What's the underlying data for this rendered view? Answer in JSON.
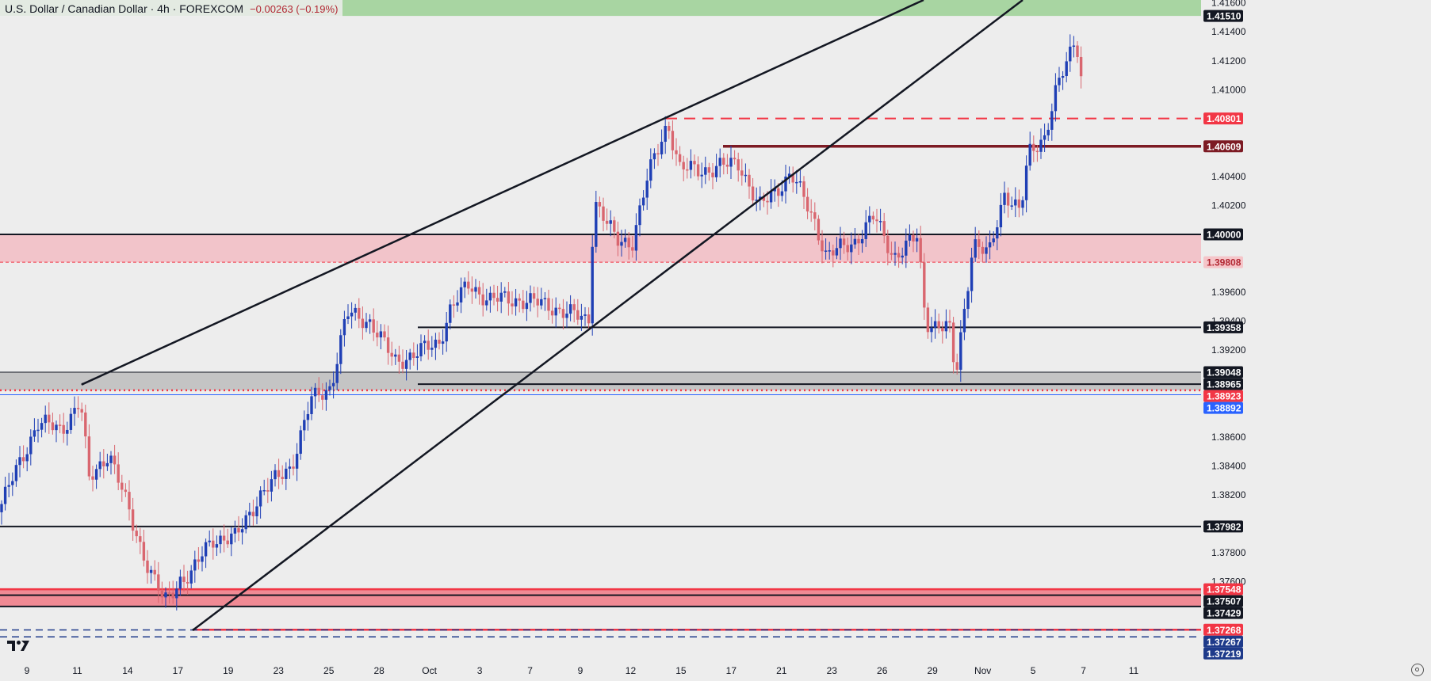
{
  "header": {
    "title": "U.S. Dollar / Canadian Dollar · 4h · FOREXCOM",
    "change": "−0.00263 (−0.19%)"
  },
  "colors": {
    "bull": "#1f3fb5",
    "bear": "#d9666f",
    "resistance_band": "#a8d5a2",
    "pink_zone": "#f2c4ca",
    "gray_zone": "#c4c4c4",
    "red_line": "#f23645",
    "dark_red_line": "#7d1b24"
  },
  "chart_data": {
    "type": "candlestick",
    "symbol": "USD/CAD",
    "timeframe": "4h",
    "price_range": [
      1.371,
      1.4162
    ],
    "price_ticks": [
      "1.41600",
      "1.41400",
      "1.41200",
      "1.41000",
      "1.40400",
      "1.40200",
      "1.39600",
      "1.39400",
      "1.39200",
      "1.38600",
      "1.38400",
      "1.38200",
      "1.37800",
      "1.37600"
    ],
    "x_ticks": [
      "9",
      "11",
      "14",
      "17",
      "19",
      "23",
      "25",
      "28",
      "Oct",
      "3",
      "7",
      "9",
      "12",
      "15",
      "17",
      "21",
      "23",
      "26",
      "29",
      "Nov",
      "5",
      "7",
      "11"
    ],
    "anchors": [
      [
        0,
        1.3808
      ],
      [
        50,
        1.387
      ],
      [
        80,
        1.3865
      ],
      [
        104,
        1.3885
      ],
      [
        115,
        1.383
      ],
      [
        140,
        1.385
      ],
      [
        170,
        1.38
      ],
      [
        190,
        1.377
      ],
      [
        210,
        1.3745
      ],
      [
        230,
        1.3762
      ],
      [
        244,
        1.3765
      ],
      [
        270,
        1.379
      ],
      [
        300,
        1.379
      ],
      [
        330,
        1.382
      ],
      [
        370,
        1.384
      ],
      [
        395,
        1.3885
      ],
      [
        420,
        1.3895
      ],
      [
        440,
        1.3945
      ],
      [
        470,
        1.394
      ],
      [
        500,
        1.3912
      ],
      [
        528,
        1.3918
      ],
      [
        556,
        1.3925
      ],
      [
        570,
        1.3948
      ],
      [
        594,
        1.3965
      ],
      [
        620,
        1.3955
      ],
      [
        660,
        1.3955
      ],
      [
        700,
        1.395
      ],
      [
        745,
        1.394
      ],
      [
        752,
        1.4025
      ],
      [
        780,
        1.3995
      ],
      [
        800,
        1.3995
      ],
      [
        820,
        1.404
      ],
      [
        845,
        1.4078
      ],
      [
        860,
        1.4045
      ],
      [
        900,
        1.4045
      ],
      [
        935,
        1.405
      ],
      [
        960,
        1.4018
      ],
      [
        1000,
        1.4042
      ],
      [
        1030,
        1.401
      ],
      [
        1045,
        1.3985
      ],
      [
        1080,
        1.3995
      ],
      [
        1105,
        1.4012
      ],
      [
        1130,
        1.3985
      ],
      [
        1160,
        1.3998
      ],
      [
        1170,
        1.394
      ],
      [
        1200,
        1.3935
      ],
      [
        1208,
        1.39
      ],
      [
        1215,
        1.3932
      ],
      [
        1230,
        1.3995
      ],
      [
        1250,
        1.3985
      ],
      [
        1270,
        1.403
      ],
      [
        1290,
        1.4015
      ],
      [
        1300,
        1.4055
      ],
      [
        1320,
        1.4068
      ],
      [
        1335,
        1.41
      ],
      [
        1350,
        1.412
      ],
      [
        1360,
        1.4138
      ],
      [
        1365,
        1.411
      ]
    ],
    "trendlines": [
      {
        "from": [
          104,
          1.38965
        ],
        "to": [
          1165,
          1.4162
        ]
      },
      {
        "from": [
          244,
          1.37268
        ],
        "to": [
          1290,
          1.4162
        ]
      }
    ],
    "horizontal_levels": [
      {
        "price": 1.40801,
        "label": "1.40801",
        "style": "red-dashed",
        "x_from": 840,
        "label_bg": "#f23645",
        "label_fg": "#ffffff"
      },
      {
        "price": 1.40609,
        "label": "1.40609",
        "style": "darkred-solid",
        "x_from": 912,
        "label_bg": "#7d1b24",
        "label_fg": "#ffffff"
      },
      {
        "price": 1.4,
        "label": "1.40000",
        "style": "black",
        "x_from": 0,
        "label_bg": "#131722",
        "label_fg": "#ffffff"
      },
      {
        "price": 1.39808,
        "label": "1.39808",
        "style": "red-dotted-thin",
        "x_from": 0,
        "label_bg": "#f5c5c9",
        "label_fg": "#b22833"
      },
      {
        "price": 1.39358,
        "label": "1.39358",
        "style": "black",
        "x_from": 527,
        "label_bg": "#131722",
        "label_fg": "#ffffff"
      },
      {
        "price": 1.39048,
        "label": "1.39048",
        "style": "black-thin",
        "x_from": 0,
        "label_bg": "#131722",
        "label_fg": "#ffffff"
      },
      {
        "price": 1.38965,
        "label": "1.38965",
        "style": "black",
        "x_from": 527,
        "label_bg": "#131722",
        "label_fg": "#ffffff"
      },
      {
        "price": 1.38923,
        "label": "1.38923",
        "style": "red-dotted",
        "x_from": 0,
        "label_bg": "#f23645",
        "label_fg": "#ffffff"
      },
      {
        "price": 1.38892,
        "label": "1.38892",
        "style": "blue-thin",
        "x_from": 0,
        "label_bg": "#2962ff",
        "label_fg": "#ffffff"
      },
      {
        "price": 1.37982,
        "label": "1.37982",
        "style": "black",
        "x_from": 0,
        "label_bg": "#131722",
        "label_fg": "#ffffff"
      },
      {
        "price": 1.37548,
        "label": "1.37548",
        "style": "red",
        "x_from": 0,
        "label_bg": "#f23645",
        "label_fg": "#ffffff"
      },
      {
        "price": 1.37507,
        "label": "1.37507",
        "style": "black",
        "x_from": 0,
        "label_bg": "#131722",
        "label_fg": "#ffffff"
      },
      {
        "price": 1.37429,
        "label": "1.37429",
        "style": "black",
        "x_from": 0,
        "label_bg": "#131722",
        "label_fg": "#ffffff"
      },
      {
        "price": 1.37268,
        "label": "1.37268",
        "style": "red",
        "x_from": 244,
        "label_bg": "#f23645",
        "label_fg": "#ffffff"
      },
      {
        "price": 1.37267,
        "label": "1.37267",
        "style": "blue-dashed",
        "x_from": 0,
        "label_bg": "#1e3a8a",
        "label_fg": "#ffffff"
      },
      {
        "price": 1.37219,
        "label": "1.37219",
        "style": "blue-dashed",
        "x_from": 0,
        "label_bg": "#1e3a8a",
        "label_fg": "#ffffff"
      }
    ],
    "zones": [
      {
        "name": "resistance-zone",
        "from": 1.4151,
        "to": 1.4162,
        "color": "#a8d5a2"
      },
      {
        "name": "pink-zone",
        "from": 1.39808,
        "to": 1.4,
        "color": "#f2c4ca"
      },
      {
        "name": "gray-zone",
        "from": 1.38923,
        "to": 1.39048,
        "color": "#c4c4c4"
      },
      {
        "name": "red-support-zone",
        "from": 1.37429,
        "to": 1.37548,
        "color": "#f08a94"
      }
    ],
    "top_label": {
      "label": "1.41510",
      "label_bg": "#131722",
      "label_fg": "#ffffff"
    }
  }
}
